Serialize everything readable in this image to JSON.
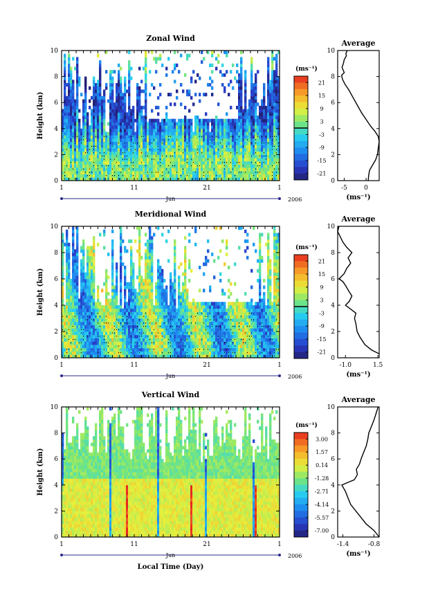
{
  "chart_data": [
    {
      "type": "heatmap",
      "title": "Zonal Wind",
      "ylabel": "Height (km)",
      "ylim": [
        0,
        10
      ],
      "yticks": [
        "0",
        "2",
        "4",
        "6",
        "8",
        "10"
      ],
      "xticks": [
        "1",
        "11",
        "21",
        "1"
      ],
      "month": "Jun",
      "year": "2006",
      "colorbar": {
        "unit": "(ms⁻¹)",
        "range": [
          -24,
          24
        ],
        "ticks": [
          "21",
          "15",
          "9",
          "3",
          "-3",
          "-9",
          "-15",
          "-21"
        ]
      },
      "average": {
        "title": "Average",
        "xticks": [
          "-5",
          "0"
        ],
        "xlabel": "(ms⁻¹)",
        "xlim": [
          -6.5,
          3
        ],
        "profile": [
          {
            "x": 0.5,
            "y": 0.0
          },
          {
            "x": 0.6,
            "y": 0.4
          },
          {
            "x": 0.8,
            "y": 0.8
          },
          {
            "x": 1.5,
            "y": 1.2
          },
          {
            "x": 2.2,
            "y": 1.6
          },
          {
            "x": 2.6,
            "y": 2.0
          },
          {
            "x": 2.8,
            "y": 2.5
          },
          {
            "x": 3.0,
            "y": 3.0
          },
          {
            "x": 2.8,
            "y": 3.4
          },
          {
            "x": 2.0,
            "y": 3.8
          },
          {
            "x": 1.0,
            "y": 4.2
          },
          {
            "x": 0.0,
            "y": 4.7
          },
          {
            "x": -1.0,
            "y": 5.2
          },
          {
            "x": -2.0,
            "y": 5.8
          },
          {
            "x": -3.0,
            "y": 6.4
          },
          {
            "x": -4.0,
            "y": 7.0
          },
          {
            "x": -4.8,
            "y": 7.4
          },
          {
            "x": -5.4,
            "y": 7.8
          },
          {
            "x": -5.6,
            "y": 8.1
          },
          {
            "x": -5.0,
            "y": 8.3
          },
          {
            "x": -5.5,
            "y": 8.7
          },
          {
            "x": -5.2,
            "y": 9.0
          },
          {
            "x": -5.0,
            "y": 9.3
          },
          {
            "x": -4.5,
            "y": 9.6
          },
          {
            "x": -4.6,
            "y": 9.8
          },
          {
            "x": -4.3,
            "y": 10.0
          }
        ]
      }
    },
    {
      "type": "heatmap",
      "title": "Meridional Wind",
      "ylabel": "Height (km)",
      "ylim": [
        0,
        10
      ],
      "yticks": [
        "0",
        "2",
        "4",
        "6",
        "8",
        "10"
      ],
      "xticks": [
        "1",
        "11",
        "21",
        "1"
      ],
      "month": "Jun",
      "year": "2006",
      "colorbar": {
        "unit": "(ms⁻¹)",
        "range": [
          -24,
          24
        ],
        "ticks": [
          "21",
          "15",
          "9",
          "3",
          "-3",
          "-9",
          "-15",
          "-21"
        ]
      },
      "average": {
        "title": "Average",
        "xticks": [
          "-1.0",
          "1.5"
        ],
        "xlabel": "(ms⁻¹)",
        "xlim": [
          -1.6,
          1.6
        ],
        "profile": [
          {
            "x": 1.6,
            "y": 0.3
          },
          {
            "x": 1.0,
            "y": 0.6
          },
          {
            "x": 0.5,
            "y": 1.0
          },
          {
            "x": 0.1,
            "y": 1.6
          },
          {
            "x": -0.1,
            "y": 2.0
          },
          {
            "x": -0.2,
            "y": 2.6
          },
          {
            "x": -0.3,
            "y": 3.0
          },
          {
            "x": -0.2,
            "y": 3.4
          },
          {
            "x": -0.6,
            "y": 3.7
          },
          {
            "x": -1.0,
            "y": 4.0
          },
          {
            "x": -0.7,
            "y": 4.3
          },
          {
            "x": -0.5,
            "y": 4.7
          },
          {
            "x": -0.7,
            "y": 5.0
          },
          {
            "x": -1.0,
            "y": 5.5
          },
          {
            "x": -1.2,
            "y": 5.8
          },
          {
            "x": -1.5,
            "y": 6.0
          },
          {
            "x": -1.1,
            "y": 6.4
          },
          {
            "x": -0.9,
            "y": 6.8
          },
          {
            "x": -0.6,
            "y": 7.2
          },
          {
            "x": -0.8,
            "y": 7.6
          },
          {
            "x": -0.5,
            "y": 8.0
          },
          {
            "x": -0.9,
            "y": 8.4
          },
          {
            "x": -1.2,
            "y": 8.8
          },
          {
            "x": -1.4,
            "y": 9.2
          },
          {
            "x": -1.6,
            "y": 9.6
          },
          {
            "x": -1.5,
            "y": 10.0
          }
        ]
      }
    },
    {
      "type": "heatmap",
      "title": "Vertical Wind",
      "ylabel": "Height (km)",
      "ylim": [
        0,
        10
      ],
      "yticks": [
        "0",
        "2",
        "4",
        "6",
        "8",
        "10"
      ],
      "xticks": [
        "1",
        "11",
        "21",
        "1"
      ],
      "month": "Jun",
      "year": "2006",
      "xlabel": "Local Time (Day)",
      "colorbar": {
        "unit": "(ms⁻¹)",
        "range": [
          -7.7,
          3.7
        ],
        "ticks": [
          "3.00",
          "1.57",
          "0.14",
          "-1.28",
          "-2.71",
          "-4.14",
          "-5.57",
          "-7.00"
        ]
      },
      "average": {
        "title": "Average",
        "xticks": [
          "-1.4",
          "-0.8"
        ],
        "xlabel": "(ms⁻¹)",
        "xlim": [
          -1.5,
          -0.7
        ],
        "profile": [
          {
            "x": -0.7,
            "y": 0.0
          },
          {
            "x": -0.8,
            "y": 0.5
          },
          {
            "x": -0.95,
            "y": 1.0
          },
          {
            "x": -1.05,
            "y": 1.5
          },
          {
            "x": -1.15,
            "y": 2.0
          },
          {
            "x": -1.25,
            "y": 2.5
          },
          {
            "x": -1.3,
            "y": 3.0
          },
          {
            "x": -1.35,
            "y": 3.5
          },
          {
            "x": -1.42,
            "y": 4.0
          },
          {
            "x": -1.3,
            "y": 4.2
          },
          {
            "x": -1.18,
            "y": 4.4
          },
          {
            "x": -1.12,
            "y": 4.8
          },
          {
            "x": -1.14,
            "y": 5.2
          },
          {
            "x": -1.08,
            "y": 5.6
          },
          {
            "x": -1.05,
            "y": 6.0
          },
          {
            "x": -1.0,
            "y": 6.5
          },
          {
            "x": -0.95,
            "y": 7.0
          },
          {
            "x": -0.92,
            "y": 7.5
          },
          {
            "x": -0.9,
            "y": 8.0
          },
          {
            "x": -0.85,
            "y": 8.5
          },
          {
            "x": -0.8,
            "y": 9.0
          },
          {
            "x": -0.76,
            "y": 9.5
          },
          {
            "x": -0.72,
            "y": 10.0
          }
        ]
      }
    }
  ]
}
